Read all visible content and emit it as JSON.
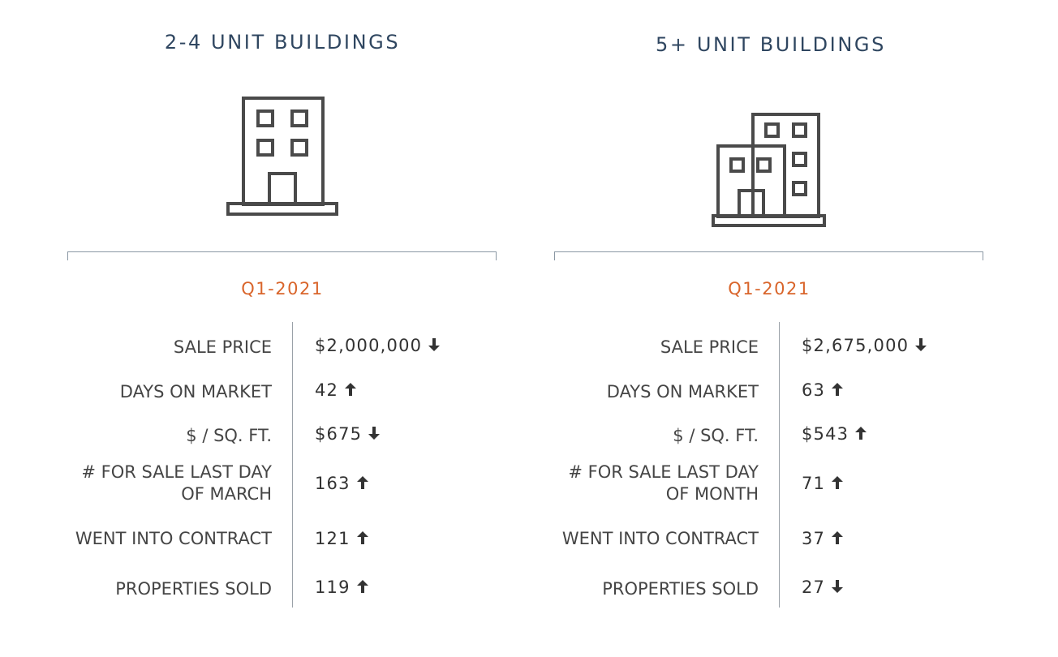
{
  "colors": {
    "title": "#2f4660",
    "accent": "#d9652b",
    "text": "#454545",
    "icon": "#4a4a4a"
  },
  "panels": [
    {
      "title": "2-4 UNIT BUILDINGS",
      "icon": "building-icon",
      "period": "Q1-2021",
      "metrics": [
        {
          "label": "SALE PRICE",
          "value": "$2,000,000",
          "trend": "down"
        },
        {
          "label": "DAYS ON MARKET",
          "value": "42",
          "trend": "up"
        },
        {
          "label": "$ / SQ. FT.",
          "value": "$675",
          "trend": "down"
        },
        {
          "label": "# FOR SALE LAST DAY OF MARCH",
          "value": "163",
          "trend": "up"
        },
        {
          "label": "WENT INTO CONTRACT",
          "value": "121",
          "trend": "up"
        },
        {
          "label": "PROPERTIES SOLD",
          "value": "119",
          "trend": "up"
        }
      ]
    },
    {
      "title": "5+ UNIT BUILDINGS",
      "icon": "buildings-icon",
      "period": "Q1-2021",
      "metrics": [
        {
          "label": "SALE PRICE",
          "value": "$2,675,000",
          "trend": "down"
        },
        {
          "label": "DAYS ON MARKET",
          "value": "63",
          "trend": "up"
        },
        {
          "label": "$ / SQ. FT.",
          "value": "$543",
          "trend": "up"
        },
        {
          "label": "# FOR SALE LAST DAY OF MONTH",
          "value": "71",
          "trend": "up"
        },
        {
          "label": "WENT INTO CONTRACT",
          "value": "37",
          "trend": "up"
        },
        {
          "label": "PROPERTIES SOLD",
          "value": "27",
          "trend": "down"
        }
      ]
    }
  ]
}
